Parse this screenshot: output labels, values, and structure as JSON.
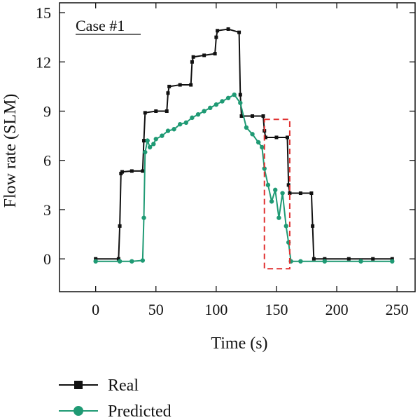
{
  "chart_data": {
    "type": "line",
    "title": "",
    "xlabel": "Time (s)",
    "ylabel": "Flow rate (SLM)",
    "xlim": [
      -30,
      265
    ],
    "ylim": [
      -2,
      15.6
    ],
    "xticks": [
      0,
      50,
      100,
      150,
      200,
      250
    ],
    "yticks": [
      0,
      3,
      6,
      9,
      12,
      15
    ],
    "grid": false,
    "legend_position": "bottom-left",
    "annotations": [
      {
        "text": "Case #1",
        "underline": true,
        "position": "top-left"
      }
    ],
    "highlight_region": {
      "x": [
        140,
        161
      ],
      "y": [
        -0.6,
        8.5
      ],
      "color": "#e03030",
      "style": "dashed"
    },
    "series": [
      {
        "name": "Real",
        "color": "#111111",
        "marker": "square",
        "x": [
          0,
          19,
          20,
          21,
          22,
          30,
          39,
          40,
          41,
          50,
          59,
          60,
          61,
          70,
          79,
          80,
          81,
          90,
          99,
          100,
          101,
          110,
          119,
          120,
          121,
          130,
          139,
          140,
          141,
          150,
          159,
          160,
          161,
          170,
          179,
          180,
          181,
          190,
          210,
          230,
          246
        ],
        "y": [
          0,
          0,
          2.0,
          5.2,
          5.3,
          5.35,
          5.35,
          7.2,
          8.9,
          9.0,
          9.0,
          10.1,
          10.5,
          10.6,
          10.6,
          12.0,
          12.3,
          12.4,
          12.5,
          13.5,
          13.9,
          14.0,
          13.8,
          10.0,
          8.7,
          8.7,
          8.7,
          7.8,
          7.4,
          7.4,
          7.4,
          4.5,
          4.0,
          4.0,
          4.0,
          2.0,
          0,
          0,
          0,
          0,
          0
        ]
      },
      {
        "name": "Predicted",
        "color": "#1f9a74",
        "marker": "circle",
        "x": [
          0,
          20,
          30,
          39,
          40,
          41,
          43,
          45,
          48,
          50,
          55,
          60,
          65,
          70,
          75,
          80,
          85,
          90,
          95,
          100,
          105,
          110,
          115,
          120,
          125,
          130,
          135,
          138,
          140,
          143,
          146,
          149,
          152,
          155,
          158,
          160,
          162,
          170,
          190,
          220,
          246
        ],
        "y": [
          -0.15,
          -0.15,
          -0.15,
          -0.1,
          2.5,
          6.5,
          7.2,
          6.8,
          7.0,
          7.3,
          7.5,
          7.8,
          7.9,
          8.2,
          8.3,
          8.6,
          8.8,
          9.0,
          9.2,
          9.4,
          9.6,
          9.8,
          10.0,
          9.5,
          8.0,
          7.6,
          7.1,
          6.8,
          5.5,
          4.5,
          3.5,
          4.2,
          2.5,
          4.0,
          2.0,
          1.0,
          -0.15,
          -0.15,
          -0.15,
          -0.15,
          -0.15
        ]
      }
    ]
  }
}
